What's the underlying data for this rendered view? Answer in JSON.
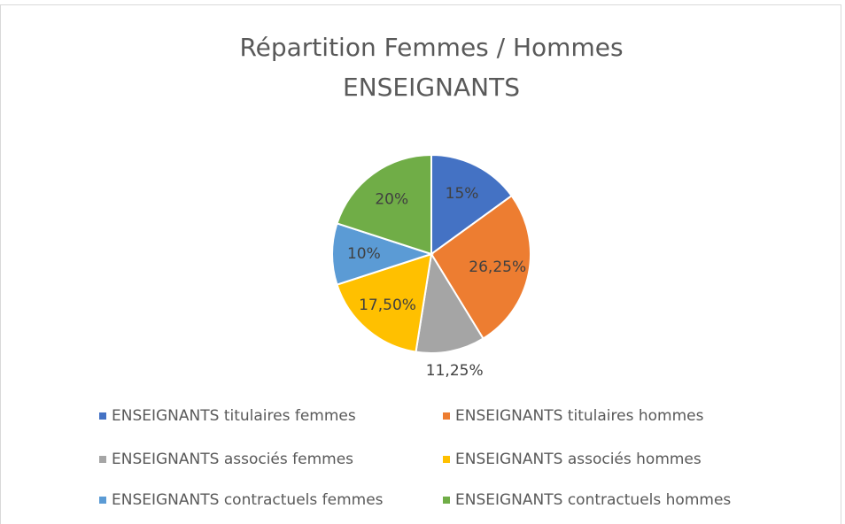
{
  "chart_data": {
    "type": "pie",
    "title": [
      "Répartition Femmes / Hommes",
      "ENSEIGNANTS"
    ],
    "categories": [
      "ENSEIGNANTS titulaires femmes",
      "ENSEIGNANTS titulaires hommes",
      "ENSEIGNANTS associés femmes",
      "ENSEIGNANTS associés hommes",
      "ENSEIGNANTS contractuels femmes",
      "ENSEIGNANTS contractuels hommes"
    ],
    "values": [
      15,
      26.25,
      11.25,
      17.5,
      10,
      20
    ],
    "value_labels": [
      "15%",
      "26,25%",
      "11,25%",
      "17,50%",
      "10%",
      "20%"
    ],
    "colors": [
      "#4472c4",
      "#ed7d31",
      "#a5a5a5",
      "#ffc000",
      "#5b9bd5",
      "#70ad47"
    ],
    "legend": "bottom"
  }
}
